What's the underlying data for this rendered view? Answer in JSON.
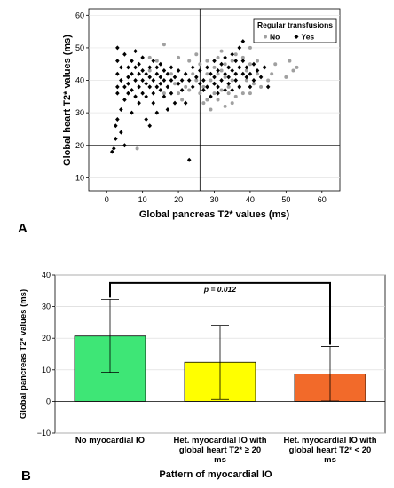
{
  "chart_data": [
    {
      "panel_label": "A",
      "type": "scatter",
      "xlabel": "Global pancreas T2* values (ms)",
      "ylabel": "Global heart T2* values (ms)",
      "xlim": [
        -5,
        65
      ],
      "ylim": [
        6,
        62
      ],
      "xticks": [
        "0",
        "10",
        "20",
        "30",
        "40",
        "50",
        "60"
      ],
      "yticks": [
        "10",
        "20",
        "30",
        "40",
        "50",
        "60"
      ],
      "reference_lines": {
        "x": 26,
        "y": 20
      },
      "legend": {
        "title": "Regular transfusions",
        "placement": "top-right"
      },
      "series": [
        {
          "name": "No",
          "color": "#a0a0a0",
          "marker": "circle",
          "points": [
            [
              8.5,
              19
            ],
            [
              12,
              47
            ],
            [
              12,
              43
            ],
            [
              14,
              46
            ],
            [
              16,
              51
            ],
            [
              16,
              36
            ],
            [
              18,
              42
            ],
            [
              19,
              39
            ],
            [
              20,
              47
            ],
            [
              20,
              36
            ],
            [
              21,
              34
            ],
            [
              22,
              38
            ],
            [
              23,
              46
            ],
            [
              23,
              37
            ],
            [
              24,
              42
            ],
            [
              25,
              48
            ],
            [
              25,
              40
            ],
            [
              26,
              45
            ],
            [
              26,
              36
            ],
            [
              27,
              33
            ],
            [
              27,
              38
            ],
            [
              28,
              34
            ],
            [
              28,
              42
            ],
            [
              28,
              46
            ],
            [
              29,
              40
            ],
            [
              29,
              31
            ],
            [
              30,
              44
            ],
            [
              30,
              36
            ],
            [
              30,
              39
            ],
            [
              31,
              42
            ],
            [
              31,
              47
            ],
            [
              31,
              34
            ],
            [
              32,
              37
            ],
            [
              32,
              43
            ],
            [
              32,
              49
            ],
            [
              33,
              32
            ],
            [
              33,
              41
            ],
            [
              33,
              45
            ],
            [
              34,
              38
            ],
            [
              34,
              36
            ],
            [
              34,
              44
            ],
            [
              35,
              46
            ],
            [
              35,
              40
            ],
            [
              35,
              33
            ],
            [
              36,
              35
            ],
            [
              36,
              42
            ],
            [
              36,
              48
            ],
            [
              37,
              38
            ],
            [
              37,
              44
            ],
            [
              38,
              36
            ],
            [
              38,
              47
            ],
            [
              39,
              40
            ],
            [
              39,
              43
            ],
            [
              40,
              36
            ],
            [
              40,
              45
            ],
            [
              40,
              50
            ],
            [
              41,
              39
            ],
            [
              42,
              42
            ],
            [
              42,
              46
            ],
            [
              43,
              38
            ],
            [
              44,
              44
            ],
            [
              45,
              40
            ],
            [
              46,
              42
            ],
            [
              47,
              45
            ],
            [
              50,
              41
            ],
            [
              51,
              46
            ],
            [
              52,
              43
            ],
            [
              53,
              44
            ]
          ]
        },
        {
          "name": "Yes",
          "color": "#000000",
          "marker": "diamond",
          "points": [
            [
              1.5,
              18
            ],
            [
              2,
              19
            ],
            [
              2.5,
              22
            ],
            [
              2.5,
              26
            ],
            [
              3,
              28
            ],
            [
              3,
              36
            ],
            [
              3,
              38
            ],
            [
              3,
              42
            ],
            [
              3,
              46
            ],
            [
              3,
              50
            ],
            [
              4,
              24
            ],
            [
              4,
              31
            ],
            [
              4,
              40
            ],
            [
              4,
              44
            ],
            [
              5,
              34
            ],
            [
              5,
              38
            ],
            [
              5,
              48
            ],
            [
              5,
              20
            ],
            [
              6,
              41
            ],
            [
              6,
              36
            ],
            [
              6,
              44
            ],
            [
              6,
              39
            ],
            [
              7,
              42
            ],
            [
              7,
              37
            ],
            [
              7,
              30
            ],
            [
              7,
              46
            ],
            [
              8,
              40
            ],
            [
              8,
              44
            ],
            [
              8,
              35
            ],
            [
              8,
              49
            ],
            [
              9,
              38
            ],
            [
              9,
              42
            ],
            [
              9,
              33
            ],
            [
              9,
              45
            ],
            [
              10,
              40
            ],
            [
              10,
              36
            ],
            [
              10,
              47
            ],
            [
              10,
              43
            ],
            [
              11,
              39
            ],
            [
              11,
              28
            ],
            [
              11,
              42
            ],
            [
              11,
              35
            ],
            [
              12,
              44
            ],
            [
              12,
              38
            ],
            [
              12,
              41
            ],
            [
              12,
              26
            ],
            [
              13,
              40
            ],
            [
              13,
              36
            ],
            [
              13,
              46
            ],
            [
              13,
              33
            ],
            [
              14,
              42
            ],
            [
              14,
              38
            ],
            [
              14,
              44
            ],
            [
              14,
              30
            ],
            [
              15,
              39
            ],
            [
              15,
              41
            ],
            [
              15,
              37
            ],
            [
              15,
              45
            ],
            [
              16,
              40
            ],
            [
              16,
              43
            ],
            [
              16,
              35
            ],
            [
              17,
              38
            ],
            [
              17,
              42
            ],
            [
              17,
              31
            ],
            [
              18,
              40
            ],
            [
              18,
              44
            ],
            [
              18,
              36
            ],
            [
              19,
              41
            ],
            [
              19,
              33
            ],
            [
              20,
              39
            ],
            [
              20,
              43
            ],
            [
              21,
              40
            ],
            [
              21,
              37
            ],
            [
              22,
              42
            ],
            [
              22,
              33
            ],
            [
              23,
              15.5
            ],
            [
              23,
              40
            ],
            [
              24,
              38
            ],
            [
              24,
              44
            ],
            [
              25,
              41
            ],
            [
              26,
              39
            ],
            [
              26,
              43
            ],
            [
              27,
              40
            ],
            [
              27,
              37
            ],
            [
              28,
              44
            ],
            [
              28,
              38
            ],
            [
              29,
              42
            ],
            [
              29,
              35
            ],
            [
              30,
              41
            ],
            [
              30,
              39
            ],
            [
              30,
              46
            ],
            [
              31,
              43
            ],
            [
              31,
              38
            ],
            [
              31,
              36
            ],
            [
              32,
              40
            ],
            [
              32,
              45
            ],
            [
              33,
              42
            ],
            [
              33,
              37
            ],
            [
              33,
              47
            ],
            [
              34,
              41
            ],
            [
              34,
              44
            ],
            [
              34,
              39
            ],
            [
              35,
              43
            ],
            [
              35,
              48
            ],
            [
              35,
              37
            ],
            [
              36,
              42
            ],
            [
              36,
              46
            ],
            [
              36,
              40
            ],
            [
              37,
              44
            ],
            [
              37,
              50
            ],
            [
              37,
              38
            ],
            [
              38,
              42
            ],
            [
              38,
              46
            ],
            [
              38,
              52
            ],
            [
              39,
              41
            ],
            [
              39,
              44
            ],
            [
              40,
              42
            ],
            [
              40,
              38
            ],
            [
              41,
              45
            ],
            [
              41,
              40
            ],
            [
              42,
              43
            ],
            [
              43,
              41
            ],
            [
              44,
              44
            ],
            [
              45,
              38
            ]
          ]
        }
      ]
    },
    {
      "panel_label": "B",
      "type": "bar",
      "xlabel": "Pattern of myocardial IO",
      "ylabel": "Global pancreas T2* values (ms)",
      "ylim": [
        -10,
        40
      ],
      "yticks": [
        "−10",
        "0",
        "10",
        "20",
        "30",
        "40"
      ],
      "categories": [
        [
          "No myocardial IO"
        ],
        [
          "Het. myocardial IO with",
          "global heart T2* ≥ 20",
          "ms"
        ],
        [
          "Het. myocardial IO with",
          "global heart T2* < 20",
          "ms"
        ]
      ],
      "values": [
        20.7,
        12.4,
        8.7
      ],
      "error_low": [
        9.2,
        0.6,
        0.1
      ],
      "error_high": [
        32.3,
        24.1,
        17.4
      ],
      "colors": [
        "#3ee676",
        "#ffff00",
        "#f26a2a"
      ],
      "significance": {
        "from": 0,
        "to": 2,
        "label": "p = 0.012"
      }
    }
  ]
}
